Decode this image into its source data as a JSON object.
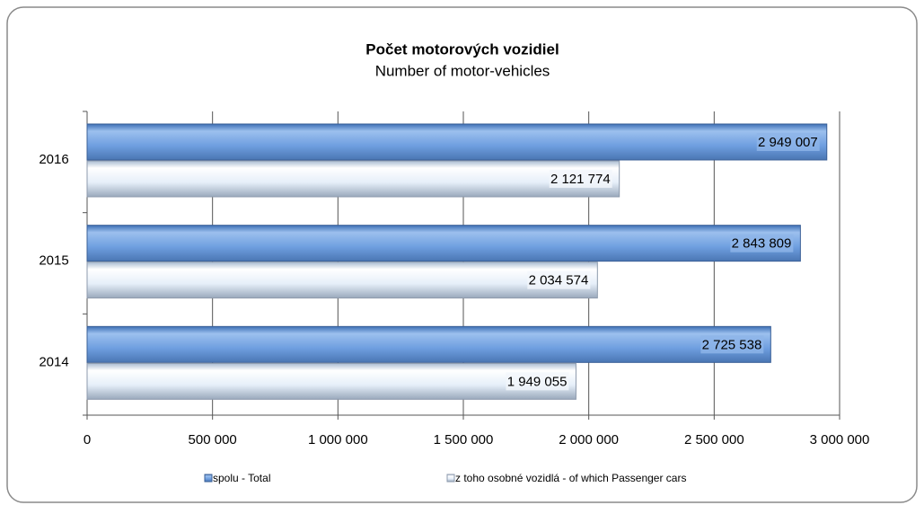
{
  "chart_data": {
    "type": "bar",
    "orientation": "horizontal",
    "title": "Počet motorových vozidiel",
    "subtitle": "Number of motor-vehicles",
    "categories": [
      "2016",
      "2015",
      "2014"
    ],
    "series": [
      {
        "name": "spolu - Total",
        "color": "#5b8fd6",
        "values": [
          2949007,
          2843809,
          2725538
        ],
        "value_labels": [
          "2 949 007",
          "2 843 809",
          "2 725 538"
        ]
      },
      {
        "name": "z toho osobné vozidlá - of which Passenger cars",
        "color": "#e8f0fa",
        "values": [
          2121774,
          2034574,
          1949055
        ],
        "value_labels": [
          "2 121 774",
          "2 034 574",
          "1 949 055"
        ]
      }
    ],
    "xlim": [
      0,
      3000000
    ],
    "xticks": [
      0,
      {
        "value": 500000,
        "label": "500 000"
      },
      {
        "value": 1000000,
        "label": "1 000 000"
      },
      {
        "value": 1500000,
        "label": "1 500 000"
      },
      {
        "value": 2000000,
        "label": "2 000 000"
      },
      {
        "value": 2500000,
        "label": "2 500 000"
      },
      {
        "value": 3000000,
        "label": "3 000 000"
      }
    ],
    "grid": true,
    "legend": "bottom"
  }
}
